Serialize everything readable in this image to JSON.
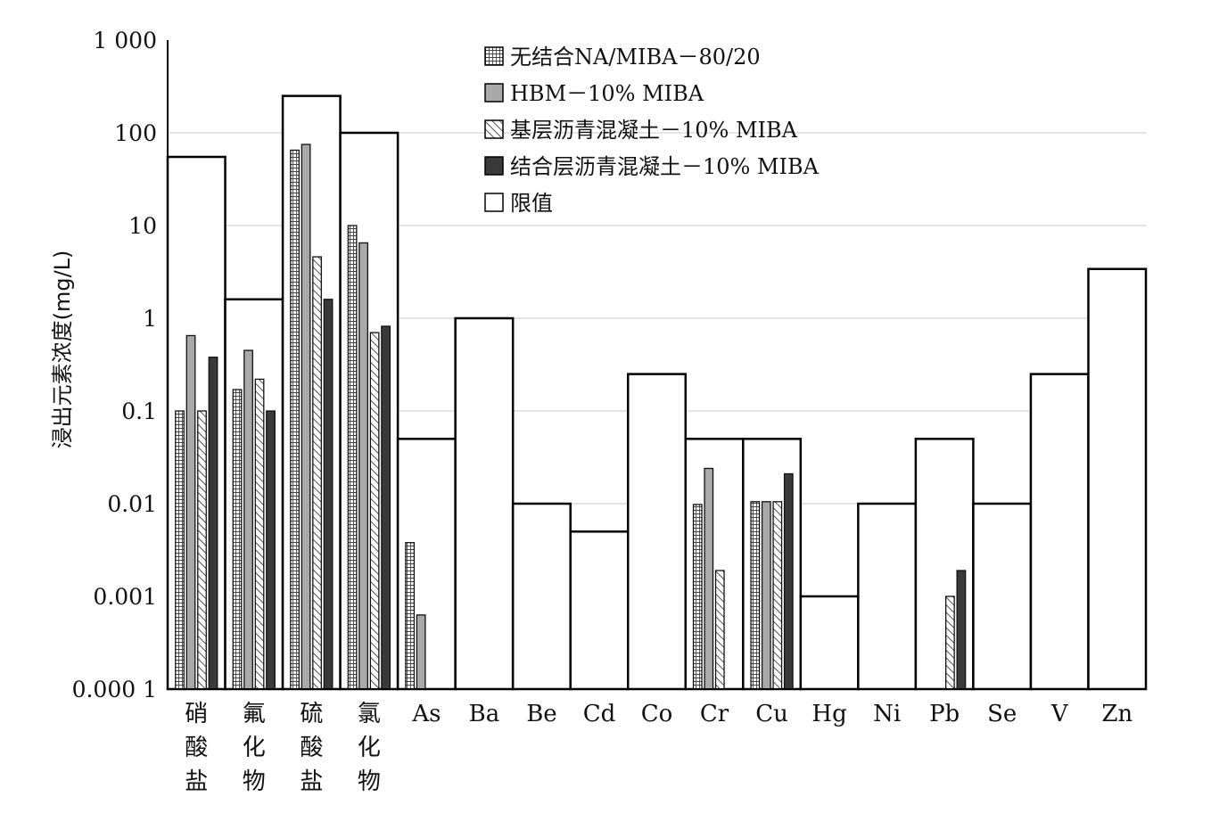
{
  "chart_data": {
    "type": "bar",
    "yscale": "log",
    "ylim": [
      0.0001,
      1000
    ],
    "ylabel": "浸出元素浓度(mg/L)",
    "xlabel": "",
    "yticks": [
      {
        "value": 1000,
        "label": "1 000"
      },
      {
        "value": 100,
        "label": "100"
      },
      {
        "value": 10,
        "label": "10"
      },
      {
        "value": 1,
        "label": "1"
      },
      {
        "value": 0.1,
        "label": "0.1"
      },
      {
        "value": 0.01,
        "label": "0.01"
      },
      {
        "value": 0.001,
        "label": "0.001"
      },
      {
        "value": 0.0001,
        "label": "0.000 1"
      }
    ],
    "grid": true,
    "legend_position": "top-center",
    "categories": [
      "硝酸盐",
      "氟化物",
      "硫酸盐",
      "氯化物",
      "As",
      "Ba",
      "Be",
      "Cd",
      "Co",
      "Cr",
      "Cu",
      "Hg",
      "Ni",
      "Pb",
      "Se",
      "V",
      "Zn"
    ],
    "series": [
      {
        "name": "无结合NA/MIBA－80/20",
        "pattern": "grid",
        "values": [
          0.1,
          0.17,
          65,
          10,
          0.0038,
          null,
          null,
          null,
          null,
          0.0098,
          0.0105,
          null,
          null,
          null,
          null,
          null,
          null
        ]
      },
      {
        "name": "HBM－10% MIBA",
        "pattern": "gray",
        "values": [
          0.65,
          0.45,
          75,
          6.5,
          0.00063,
          null,
          null,
          null,
          null,
          0.024,
          0.0105,
          null,
          null,
          null,
          null,
          null,
          null
        ]
      },
      {
        "name": "基层沥青混凝土－10% MIBA",
        "pattern": "hatch",
        "values": [
          0.1,
          0.22,
          4.6,
          0.7,
          null,
          null,
          null,
          null,
          null,
          0.0019,
          0.0105,
          null,
          null,
          0.001,
          null,
          null,
          null
        ]
      },
      {
        "name": "结合层沥青混凝土－10% MIBA",
        "pattern": "dark",
        "values": [
          0.38,
          0.1,
          1.6,
          0.82,
          null,
          null,
          null,
          null,
          null,
          null,
          0.021,
          null,
          null,
          0.0019,
          null,
          null,
          null
        ]
      },
      {
        "name": "限值",
        "pattern": "white",
        "values": [
          55,
          1.6,
          250,
          100,
          0.05,
          1,
          0.01,
          0.005,
          0.25,
          0.05,
          0.05,
          0.001,
          0.01,
          0.05,
          0.01,
          0.25,
          3.4
        ]
      }
    ]
  }
}
